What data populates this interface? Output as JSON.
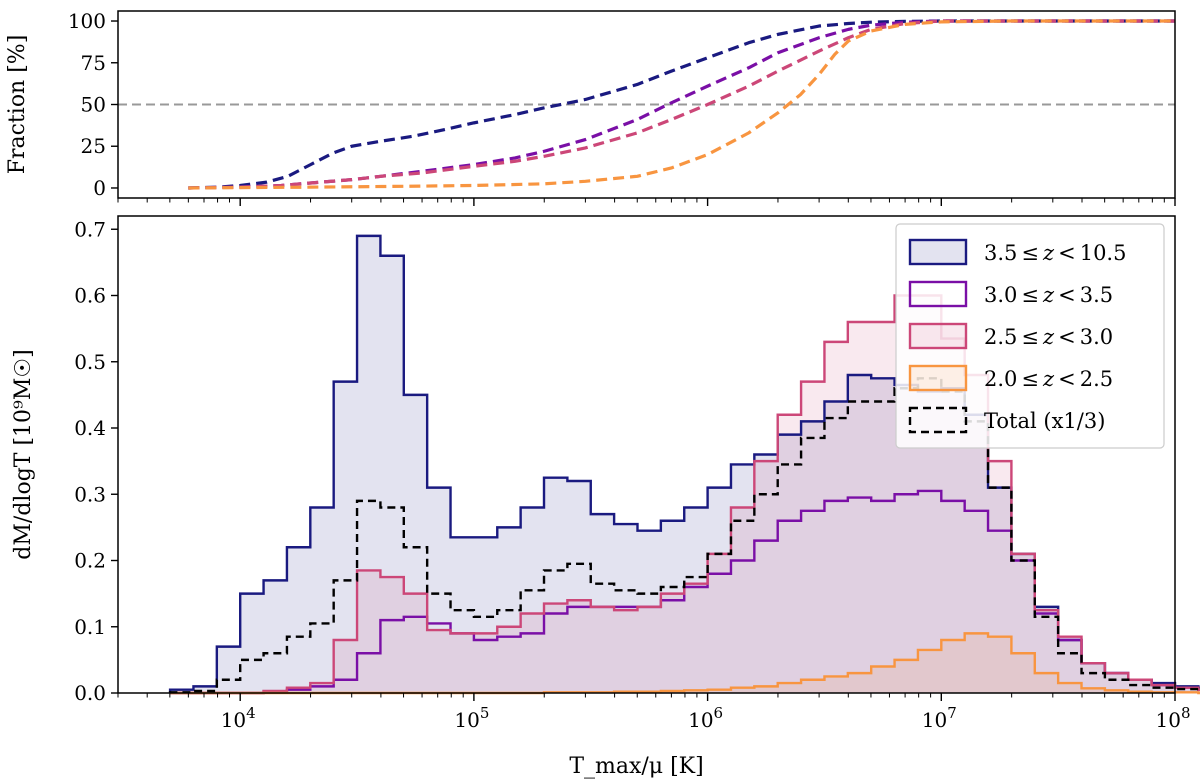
{
  "chart_data": [
    {
      "type": "line",
      "panel": "top",
      "title": "",
      "xlabel": "",
      "ylabel": "Fraction [%]",
      "xscale": "log",
      "xlim": [
        3000,
        100000000
      ],
      "ylim": [
        -6,
        106
      ],
      "yticks": [
        0,
        25,
        50,
        75,
        100
      ],
      "ytick_labels": [
        "0",
        "25",
        "50",
        "75",
        "100"
      ],
      "reference_line": {
        "y": 50,
        "style": "dashed",
        "color": "#999999"
      },
      "series": [
        {
          "name": "3.5 ≤ z < 10.5",
          "color": "#1a1a80",
          "x": [
            6000,
            8000,
            10000,
            13000,
            16000,
            20000,
            25000,
            30000,
            40000,
            55000,
            75000,
            100000,
            150000,
            200000,
            300000,
            500000,
            700000,
            1000000,
            1500000,
            2000000,
            3000000,
            4000000,
            5000000,
            7000000,
            10000000,
            20000000,
            50000000,
            100000000
          ],
          "y": [
            0,
            0.5,
            1.5,
            3.5,
            7,
            14,
            21,
            25,
            28,
            31,
            35,
            39,
            44,
            48,
            53,
            62,
            70,
            78,
            87,
            92,
            97,
            98.5,
            99.3,
            99.8,
            100,
            100,
            100,
            100
          ]
        },
        {
          "name": "3.0 ≤ z < 3.5",
          "color": "#7a0fa6",
          "x": [
            6000,
            10000,
            15000,
            20000,
            30000,
            40000,
            60000,
            100000,
            150000,
            200000,
            300000,
            500000,
            700000,
            1000000,
            1500000,
            2000000,
            3000000,
            4000000,
            5000000,
            7000000,
            10000000,
            20000000,
            100000000
          ],
          "y": [
            0,
            0.5,
            1.5,
            3,
            5,
            7,
            10,
            14,
            18,
            22,
            29,
            41,
            51,
            61,
            72,
            81,
            90,
            95,
            97.5,
            99.3,
            100,
            100,
            100
          ]
        },
        {
          "name": "2.5 ≤ z < 3.0",
          "color": "#cc4778",
          "x": [
            6000,
            10000,
            15000,
            20000,
            30000,
            40000,
            60000,
            100000,
            150000,
            200000,
            300000,
            500000,
            700000,
            1000000,
            1500000,
            2000000,
            3000000,
            4000000,
            5000000,
            7000000,
            10000000,
            20000000,
            100000000
          ],
          "y": [
            0,
            0.5,
            1.5,
            3,
            5,
            7,
            9,
            13,
            16,
            19,
            24,
            33,
            41,
            50,
            61,
            70,
            82,
            90,
            95,
            98.5,
            100,
            100,
            100
          ]
        },
        {
          "name": "2.0 ≤ z < 2.5",
          "color": "#f89540",
          "x": [
            6000,
            10000,
            20000,
            50000,
            100000,
            200000,
            300000,
            500000,
            700000,
            1000000,
            1500000,
            2000000,
            2500000,
            3000000,
            3500000,
            4000000,
            5000000,
            7000000,
            10000000,
            20000000,
            100000000
          ],
          "y": [
            0,
            0.2,
            0.5,
            1,
            1.5,
            2.5,
            4,
            7,
            12,
            20,
            33,
            45,
            56,
            68,
            80,
            88,
            94,
            98,
            99.5,
            100,
            100
          ]
        }
      ]
    },
    {
      "type": "histogram",
      "panel": "bottom",
      "title": "",
      "xlabel": "T_max/μ [K]",
      "ylabel": "dM/dlogT [10⁹M☉]",
      "xscale": "log",
      "xlim": [
        3000,
        100000000
      ],
      "ylim": [
        0,
        0.72
      ],
      "yticks": [
        0.0,
        0.1,
        0.2,
        0.3,
        0.4,
        0.5,
        0.6,
        0.7
      ],
      "ytick_labels": [
        "0.0",
        "0.1",
        "0.2",
        "0.3",
        "0.4",
        "0.5",
        "0.6",
        "0.7"
      ],
      "xticks": [
        10000,
        100000,
        1000000,
        10000000,
        100000000
      ],
      "xtick_labels": [
        {
          "base": "10",
          "exp": "4"
        },
        {
          "base": "10",
          "exp": "5"
        },
        {
          "base": "10",
          "exp": "6"
        },
        {
          "base": "10",
          "exp": "7"
        },
        {
          "base": "10",
          "exp": "8"
        }
      ],
      "bin_log_start": 3.7,
      "bin_log_width": 0.1,
      "legend_position": "upper-right",
      "series": [
        {
          "name": "3.5 ≤ z < 10.5",
          "label_parts": [
            "3.5",
            "≤",
            "z",
            "<",
            "10.5"
          ],
          "color": "#1a1a80",
          "fill": true,
          "values": [
            0.005,
            0.01,
            0.07,
            0.15,
            0.17,
            0.22,
            0.28,
            0.47,
            0.69,
            0.66,
            0.45,
            0.31,
            0.235,
            0.235,
            0.25,
            0.28,
            0.325,
            0.32,
            0.27,
            0.255,
            0.245,
            0.26,
            0.28,
            0.31,
            0.345,
            0.36,
            0.39,
            0.41,
            0.44,
            0.48,
            0.475,
            0.465,
            0.455,
            0.46,
            0.42,
            0.31,
            0.21,
            0.13,
            0.08,
            0.045,
            0.03,
            0.02,
            0.015,
            0.01,
            0.008,
            0.006,
            0.005,
            0.004,
            0.003,
            0.002,
            0.001,
            0.001,
            0.001
          ]
        },
        {
          "name": "3.0 ≤ z < 3.5",
          "label_parts": [
            "3.0",
            "≤",
            "z",
            "<",
            "3.5"
          ],
          "color": "#7a0fa6",
          "fill": false,
          "values": [
            0,
            0,
            0,
            0,
            0.002,
            0.005,
            0.01,
            0.02,
            0.06,
            0.11,
            0.115,
            0.105,
            0.09,
            0.08,
            0.085,
            0.09,
            0.12,
            0.13,
            0.13,
            0.13,
            0.13,
            0.14,
            0.16,
            0.18,
            0.2,
            0.23,
            0.26,
            0.275,
            0.29,
            0.295,
            0.29,
            0.3,
            0.305,
            0.29,
            0.275,
            0.245,
            0.2,
            0.12,
            0.08,
            0.045,
            0.03,
            0.02,
            0.012,
            0.008,
            0.005,
            0.004,
            0.003,
            0.002,
            0.001,
            0.001,
            0,
            0,
            0
          ]
        },
        {
          "name": "2.5 ≤ z < 3.0",
          "label_parts": [
            "2.5",
            "≤",
            "z",
            "<",
            "3.0"
          ],
          "color": "#cc4778",
          "fill": true,
          "values": [
            0,
            0,
            0,
            0,
            0.003,
            0.008,
            0.015,
            0.08,
            0.185,
            0.175,
            0.15,
            0.095,
            0.09,
            0.09,
            0.1,
            0.12,
            0.135,
            0.14,
            0.13,
            0.125,
            0.13,
            0.15,
            0.165,
            0.21,
            0.28,
            0.35,
            0.42,
            0.47,
            0.53,
            0.56,
            0.56,
            0.6,
            0.6,
            0.535,
            0.48,
            0.35,
            0.21,
            0.125,
            0.085,
            0.045,
            0.03,
            0.02,
            0.012,
            0.008,
            0.005,
            0.003,
            0.002,
            0.001,
            0.001,
            0,
            0,
            0,
            0
          ]
        },
        {
          "name": "2.0 ≤ z < 2.5",
          "label_parts": [
            "2.0",
            "≤",
            "z",
            "<",
            "2.5"
          ],
          "color": "#f89540",
          "fill": true,
          "values": [
            0,
            0,
            0,
            0,
            0,
            0,
            0,
            0,
            0,
            0,
            0,
            0,
            0,
            0,
            0,
            0,
            0.001,
            0.001,
            0.001,
            0.002,
            0.002,
            0.003,
            0.004,
            0.005,
            0.008,
            0.01,
            0.015,
            0.02,
            0.025,
            0.03,
            0.04,
            0.05,
            0.065,
            0.08,
            0.09,
            0.085,
            0.06,
            0.03,
            0.015,
            0.007,
            0.004,
            0.002,
            0.001,
            0.001,
            0,
            0,
            0,
            0,
            0,
            0,
            0,
            0,
            0
          ]
        },
        {
          "name": "Total (x1/3)",
          "label_parts": [
            "Total (x1/3)"
          ],
          "color": "#000000",
          "fill": false,
          "dashed": true,
          "values": [
            0.001,
            0.003,
            0.02,
            0.05,
            0.06,
            0.085,
            0.105,
            0.17,
            0.29,
            0.28,
            0.22,
            0.15,
            0.125,
            0.115,
            0.125,
            0.155,
            0.185,
            0.195,
            0.165,
            0.155,
            0.15,
            0.16,
            0.175,
            0.21,
            0.26,
            0.3,
            0.345,
            0.385,
            0.415,
            0.44,
            0.44,
            0.46,
            0.475,
            0.455,
            0.41,
            0.31,
            0.2,
            0.115,
            0.06,
            0.03,
            0.02,
            0.012,
            0.008,
            0.006,
            0.004,
            0.003,
            0.002,
            0.001,
            0.001,
            0.001,
            0,
            0,
            0
          ]
        }
      ]
    }
  ]
}
